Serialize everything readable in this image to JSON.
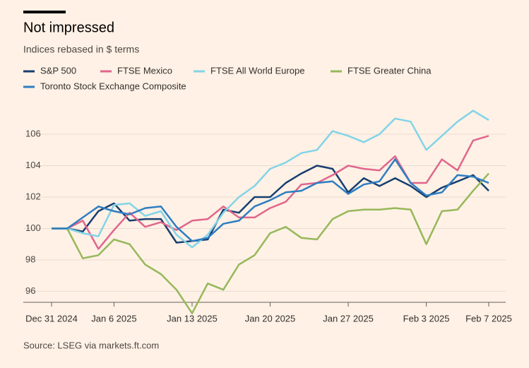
{
  "chart_data": {
    "type": "line",
    "title": "Not impressed",
    "subtitle": "Indices rebased in $ terms",
    "source": "Source: LSEG via markets.ft.com",
    "x": [
      "2024-12-31",
      "2025-01-01",
      "2025-01-02",
      "2025-01-03",
      "2025-01-06",
      "2025-01-07",
      "2025-01-08",
      "2025-01-09",
      "2025-01-10",
      "2025-01-13",
      "2025-01-14",
      "2025-01-15",
      "2025-01-16",
      "2025-01-17",
      "2025-01-20",
      "2025-01-21",
      "2025-01-22",
      "2025-01-23",
      "2025-01-24",
      "2025-01-27",
      "2025-01-28",
      "2025-01-29",
      "2025-01-30",
      "2025-01-31",
      "2025-02-03",
      "2025-02-04",
      "2025-02-05",
      "2025-02-06",
      "2025-02-07"
    ],
    "series": [
      {
        "name": "S&P 500",
        "color": "#163e70",
        "values": [
          100,
          100,
          99.8,
          101.1,
          101.6,
          100.5,
          100.6,
          100.6,
          99.1,
          99.2,
          99.3,
          101.2,
          101.0,
          102.0,
          102.0,
          102.9,
          103.5,
          104.0,
          103.8,
          102.3,
          103.2,
          102.7,
          103.2,
          102.7,
          102.0,
          102.6,
          103.0,
          103.4,
          102.4
        ]
      },
      {
        "name": "FTSE Mexico",
        "color": "#e0668c",
        "values": [
          100,
          100,
          100.5,
          98.7,
          99.9,
          101.0,
          100.1,
          100.4,
          99.9,
          100.5,
          100.6,
          101.4,
          100.7,
          100.7,
          101.3,
          101.7,
          102.8,
          102.9,
          103.4,
          104.0,
          103.8,
          103.7,
          104.6,
          102.9,
          102.9,
          104.4,
          103.7,
          105.6,
          105.9
        ]
      },
      {
        "name": "FTSE All World Europe",
        "color": "#82d4e8",
        "values": [
          100,
          100,
          99.7,
          99.5,
          101.5,
          101.6,
          100.8,
          101.1,
          99.6,
          98.8,
          99.6,
          101.0,
          102.0,
          102.7,
          103.8,
          104.2,
          104.8,
          105.0,
          106.2,
          105.9,
          105.5,
          106.0,
          107.0,
          106.8,
          105.0,
          105.9,
          106.8,
          107.5,
          106.9
        ]
      },
      {
        "name": "FTSE Greater China",
        "color": "#96b85a",
        "values": [
          100,
          100,
          98.1,
          98.3,
          99.3,
          99.0,
          97.7,
          97.1,
          96.1,
          94.6,
          96.5,
          96.1,
          97.7,
          98.3,
          99.7,
          100.1,
          99.4,
          99.3,
          100.6,
          101.1,
          101.2,
          101.2,
          101.3,
          101.2,
          99.0,
          101.1,
          101.2,
          102.4,
          103.5
        ]
      },
      {
        "name": "Toronto Stock Exchange Composite",
        "color": "#2e7dc2",
        "values": [
          100,
          100,
          100.7,
          101.4,
          101.1,
          100.9,
          101.3,
          101.4,
          100.1,
          99.2,
          99.4,
          100.3,
          100.5,
          101.4,
          101.8,
          102.3,
          102.4,
          102.9,
          103.0,
          102.2,
          102.8,
          103.0,
          104.4,
          102.9,
          102.1,
          102.3,
          103.4,
          103.3,
          102.9
        ]
      }
    ],
    "xlim": [
      "2024-12-31",
      "2025-02-07"
    ],
    "xticks": [
      {
        "value": "2024-12-31",
        "label": "Dec 31 2024"
      },
      {
        "value": "2025-01-06",
        "label": "Jan 6 2025"
      },
      {
        "value": "2025-01-13",
        "label": "Jan 13 2025"
      },
      {
        "value": "2025-01-20",
        "label": "Jan 20 2025"
      },
      {
        "value": "2025-01-27",
        "label": "Jan 27 2025"
      },
      {
        "value": "2025-02-03",
        "label": "Feb 3 2025"
      },
      {
        "value": "2025-02-07",
        "label": "Feb 7 2025"
      }
    ],
    "ylim": [
      95.3,
      107.8
    ],
    "yticks": [
      96,
      98,
      100,
      102,
      104,
      106
    ],
    "grid": true
  }
}
